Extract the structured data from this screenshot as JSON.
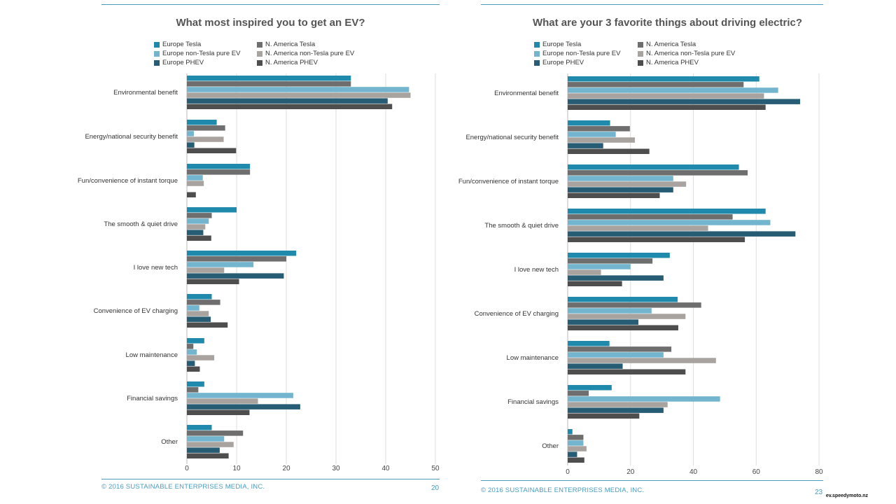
{
  "colors": {
    "europe_tesla": "#1f8aab",
    "na_tesla": "#6e6e6e",
    "europe_non_tesla": "#73b5cf",
    "na_non_tesla": "#a8a39e",
    "europe_phev": "#265c74",
    "na_phev": "#4e4e4e",
    "accent": "#4a9cc0"
  },
  "legend": {
    "europe_tesla": "Europe Tesla",
    "europe_non_tesla": "Europe non-Tesla pure EV",
    "europe_phev": "Europe PHEV",
    "na_tesla": "N. America Tesla",
    "na_non_tesla": "N. America non-Tesla pure EV",
    "na_phev": "N. America PHEV"
  },
  "chart_data": [
    {
      "type": "bar",
      "orientation": "horizontal",
      "title": "What most inspired you to get an EV?",
      "categories": [
        "Environmental benefit",
        "Energy/national security benefit",
        "Fun/convenience of instant torque",
        "The smooth & quiet drive",
        "I love new tech",
        "Convenience of EV charging",
        "Low maintenance",
        "Financial savings",
        "Other"
      ],
      "series": [
        {
          "name": "Europe Tesla",
          "key": "europe_tesla",
          "values": [
            33,
            6,
            12.7,
            10,
            22,
            5,
            3.5,
            3.5,
            5
          ]
        },
        {
          "name": "N. America Tesla",
          "key": "na_tesla",
          "values": [
            33,
            7.7,
            12.7,
            5,
            20,
            6.7,
            1.3,
            2.3,
            11.3
          ]
        },
        {
          "name": "Europe non-Tesla pure EV",
          "key": "europe_non_tesla",
          "values": [
            44.7,
            1.4,
            3.2,
            4.4,
            13.4,
            2.5,
            2,
            21.4,
            7.5
          ]
        },
        {
          "name": "N. America non-Tesla pure EV",
          "key": "na_non_tesla",
          "values": [
            45,
            7.4,
            3.4,
            3.7,
            7.5,
            4.4,
            5.5,
            14.3,
            9.4
          ]
        },
        {
          "name": "Europe PHEV",
          "key": "europe_phev",
          "values": [
            40.4,
            1.5,
            0,
            3.3,
            19.5,
            4.8,
            1.6,
            22.8,
            6.6
          ]
        },
        {
          "name": "N. America PHEV",
          "key": "na_phev",
          "values": [
            41.3,
            9.9,
            1.8,
            4.9,
            10.5,
            8.2,
            2.6,
            12.6,
            8.4
          ]
        }
      ],
      "xlim": [
        0,
        50
      ],
      "xticks": [
        0,
        10,
        20,
        30,
        40,
        50
      ],
      "footer": "© 2016  SUSTAINABLE ENTERPRISES MEDIA, INC.",
      "page_number": "20"
    },
    {
      "type": "bar",
      "orientation": "horizontal",
      "title": "What are your 3 favorite things about driving electric?",
      "categories": [
        "Environmental benefit",
        "Energy/national security benefit",
        "Fun/convenience of instant torque",
        "The smooth & quiet drive",
        "I love new tech",
        "Convenience of EV charging",
        "Low maintenance",
        "Financial savings",
        "Other"
      ],
      "series": [
        {
          "name": "Europe Tesla",
          "key": "europe_tesla",
          "values": [
            61,
            13.5,
            54.5,
            63,
            32.5,
            35,
            13.3,
            14,
            1.5
          ]
        },
        {
          "name": "N. America Tesla",
          "key": "na_tesla",
          "values": [
            56,
            19.8,
            57.3,
            52.5,
            27,
            42.5,
            33,
            6.7,
            5
          ]
        },
        {
          "name": "Europe non-Tesla pure EV",
          "key": "europe_non_tesla",
          "values": [
            67,
            15.3,
            33.6,
            64.5,
            20,
            26.7,
            30.5,
            48.5,
            5
          ]
        },
        {
          "name": "N. America non-Tesla pure EV",
          "key": "na_non_tesla",
          "values": [
            62.5,
            21.4,
            37.7,
            44.7,
            10.6,
            37.5,
            47.2,
            31.8,
            6
          ]
        },
        {
          "name": "Europe PHEV",
          "key": "europe_phev",
          "values": [
            74,
            11.3,
            33.6,
            72.5,
            30.5,
            22.5,
            17.5,
            30.5,
            3
          ]
        },
        {
          "name": "N. America PHEV",
          "key": "na_phev",
          "values": [
            63,
            26,
            29.3,
            56.4,
            17.3,
            35.2,
            37.5,
            22.8,
            5.3
          ]
        }
      ],
      "xlim": [
        0,
        80
      ],
      "xticks": [
        0,
        20,
        40,
        60,
        80
      ],
      "footer": "© 2016  SUSTAINABLE ENTERPRISES MEDIA, INC.",
      "page_number": "23"
    }
  ],
  "watermark": "ev.speedymoto.nz"
}
